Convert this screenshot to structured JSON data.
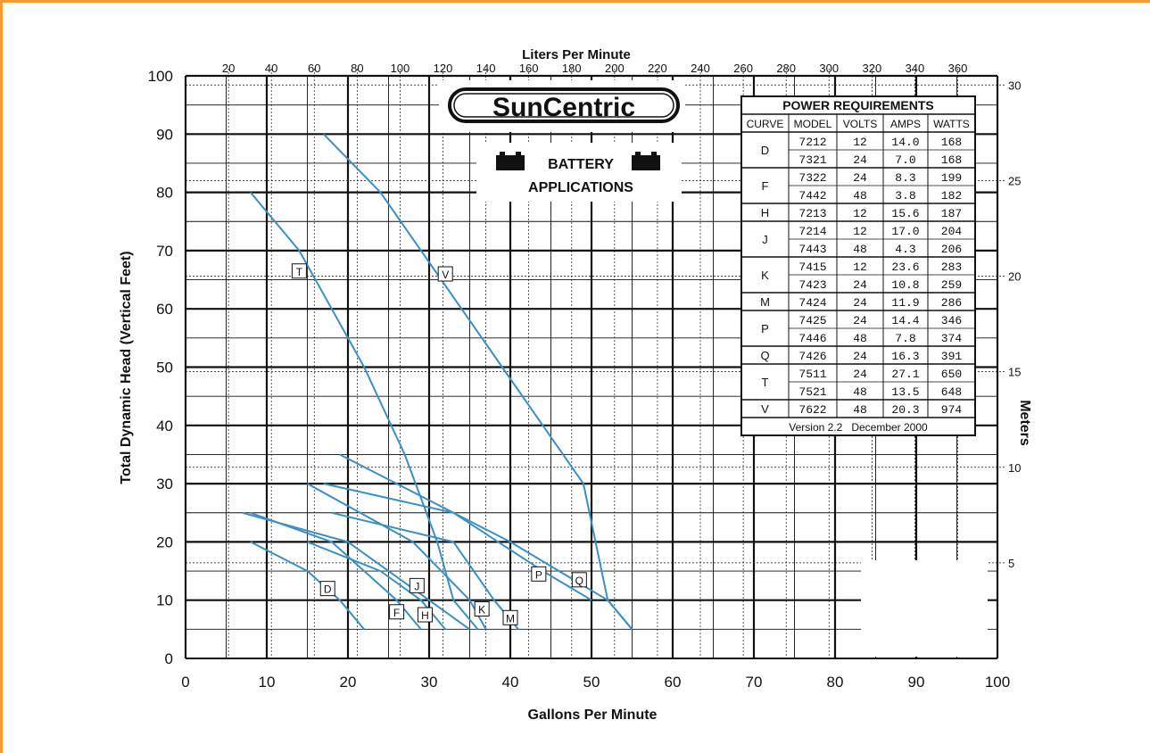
{
  "colors": {
    "frame": "#f19b37",
    "curve": "#3a8fc4",
    "grid": "#111111"
  },
  "x_label": "Gallons Per Minute",
  "y_label": "Total Dynamic Head (Vertical Feet)",
  "top_label": "Liters Per Minute",
  "right_label": "Meters",
  "logo_text": "SunCentric",
  "battery": {
    "line1": "BATTERY",
    "line2": "APPLICATIONS"
  },
  "power_table": {
    "title": "POWER REQUIREMENTS",
    "headers": [
      "CURVE",
      "MODEL",
      "VOLTS",
      "AMPS",
      "WATTS"
    ],
    "groups": [
      {
        "curve": "D",
        "rows": [
          [
            "7212",
            "12",
            "14.0",
            "168"
          ],
          [
            "7321",
            "24",
            "7.0",
            "168"
          ]
        ]
      },
      {
        "curve": "F",
        "rows": [
          [
            "7322",
            "24",
            "8.3",
            "199"
          ],
          [
            "7442",
            "48",
            "3.8",
            "182"
          ]
        ]
      },
      {
        "curve": "H",
        "rows": [
          [
            "7213",
            "12",
            "15.6",
            "187"
          ]
        ]
      },
      {
        "curve": "J",
        "rows": [
          [
            "7214",
            "12",
            "17.0",
            "204"
          ],
          [
            "7443",
            "48",
            "4.3",
            "206"
          ]
        ]
      },
      {
        "curve": "K",
        "rows": [
          [
            "7415",
            "12",
            "23.6",
            "283"
          ],
          [
            "7423",
            "24",
            "10.8",
            "259"
          ]
        ]
      },
      {
        "curve": "M",
        "rows": [
          [
            "7424",
            "24",
            "11.9",
            "286"
          ]
        ]
      },
      {
        "curve": "P",
        "rows": [
          [
            "7425",
            "24",
            "14.4",
            "346"
          ],
          [
            "7446",
            "48",
            "7.8",
            "374"
          ]
        ]
      },
      {
        "curve": "Q",
        "rows": [
          [
            "7426",
            "24",
            "16.3",
            "391"
          ]
        ]
      },
      {
        "curve": "T",
        "rows": [
          [
            "7511",
            "24",
            "27.1",
            "650"
          ],
          [
            "7521",
            "48",
            "13.5",
            "648"
          ]
        ]
      },
      {
        "curve": "V",
        "rows": [
          [
            "7622",
            "48",
            "20.3",
            "974"
          ]
        ]
      }
    ],
    "footer": "Version 2.2   December 2000"
  },
  "chart_data": {
    "type": "line",
    "title": "",
    "xlabel": "Gallons Per Minute",
    "ylabel": "Total Dynamic Head (Vertical Feet)",
    "xlim": [
      0,
      100
    ],
    "ylim": [
      0,
      100
    ],
    "x_ticks": [
      "0",
      "10",
      "20",
      "30",
      "40",
      "50",
      "60",
      "70",
      "80",
      "90",
      "100"
    ],
    "y_ticks": [
      "0",
      "10",
      "20",
      "30",
      "40",
      "50",
      "60",
      "70",
      "80",
      "90",
      "100"
    ],
    "secondary_x": {
      "label": "Liters Per Minute",
      "ticks": [
        20,
        40,
        60,
        80,
        100,
        120,
        140,
        160,
        180,
        200,
        220,
        240,
        260,
        280,
        300,
        320,
        340,
        360
      ]
    },
    "secondary_y": {
      "label": "Meters",
      "ticks": [
        5,
        10,
        15,
        20,
        25,
        30
      ]
    },
    "series": [
      {
        "name": "D",
        "x": [
          8,
          15,
          19,
          22
        ],
        "y": [
          20,
          15,
          10,
          5
        ],
        "label_pos": [
          17.5,
          12
        ]
      },
      {
        "name": "F",
        "x": [
          8,
          18,
          26,
          29
        ],
        "y": [
          25,
          20,
          10,
          5
        ],
        "label_pos": [
          26,
          8
        ]
      },
      {
        "name": "H",
        "x": [
          15,
          24,
          29,
          32
        ],
        "y": [
          20,
          15,
          10,
          5
        ],
        "label_pos": [
          29.5,
          7.5
        ]
      },
      {
        "name": "J",
        "x": [
          7,
          20,
          30,
          35
        ],
        "y": [
          25,
          20,
          10,
          5
        ],
        "label_pos": [
          28.5,
          12.5
        ]
      },
      {
        "name": "K",
        "x": [
          15,
          28,
          35,
          37
        ],
        "y": [
          30,
          20,
          10,
          5
        ],
        "label_pos": [
          36.5,
          8.5
        ]
      },
      {
        "name": "M",
        "x": [
          18,
          33,
          38,
          41
        ],
        "y": [
          25,
          20,
          10,
          5
        ],
        "label_pos": [
          40,
          7
        ]
      },
      {
        "name": "P",
        "x": [
          17,
          33,
          44,
          50
        ],
        "y": [
          30,
          25,
          15,
          10
        ],
        "label_pos": [
          43.5,
          14.5
        ]
      },
      {
        "name": "Q",
        "x": [
          19,
          40,
          52,
          55
        ],
        "y": [
          35,
          20,
          10,
          5
        ],
        "label_pos": [
          48.5,
          13.5
        ]
      },
      {
        "name": "T",
        "x": [
          8,
          14,
          22,
          27,
          31,
          33,
          36
        ],
        "y": [
          80,
          70,
          50,
          35,
          20,
          10,
          5
        ],
        "label_pos": [
          14,
          66.5
        ]
      },
      {
        "name": "V",
        "x": [
          17,
          24,
          29,
          34,
          39,
          44,
          49,
          52,
          55
        ],
        "y": [
          90,
          80,
          70,
          60,
          50,
          40,
          30,
          10,
          5
        ],
        "label_pos": [
          32,
          66
        ]
      }
    ]
  }
}
